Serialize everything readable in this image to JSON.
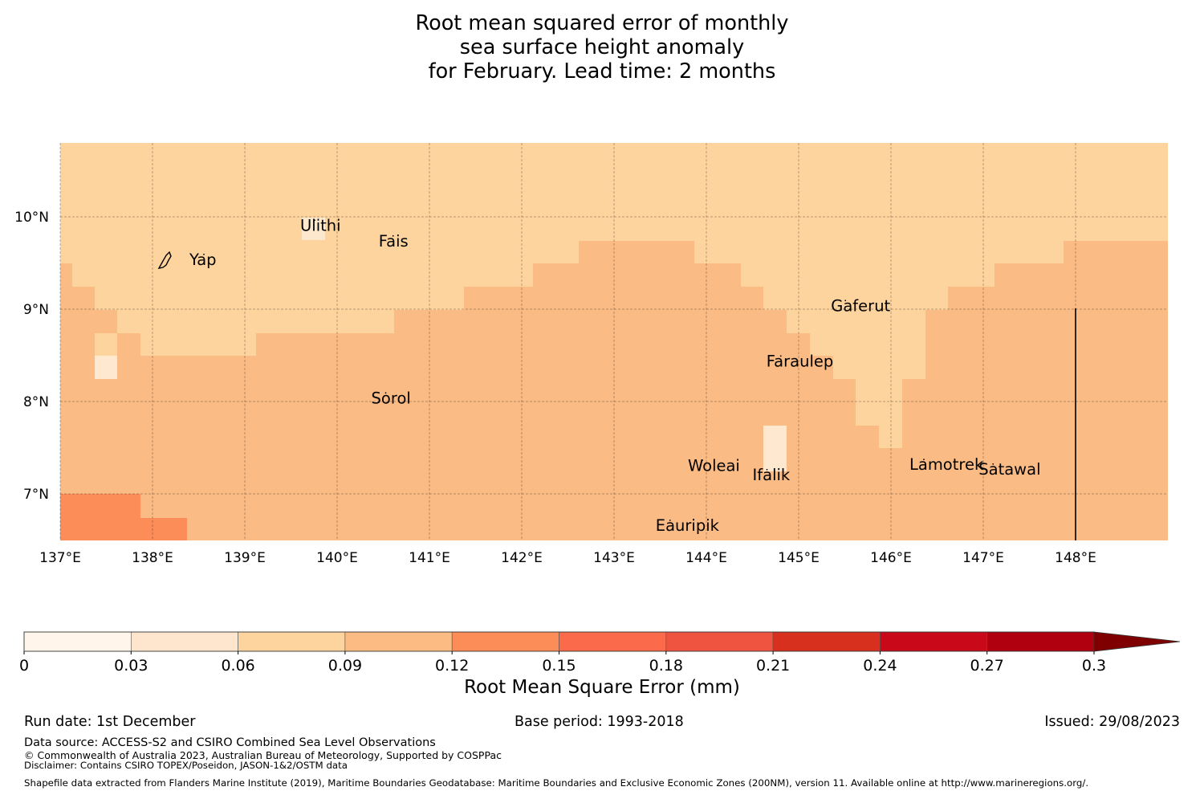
{
  "title": {
    "line1": "Root mean squared error of monthly",
    "line2": "sea surface height anomaly",
    "line3": "for February. Lead time: 2 months"
  },
  "map": {
    "lon_ticks": [
      "137°E",
      "138°E",
      "139°E",
      "140°E",
      "141°E",
      "142°E",
      "143°E",
      "144°E",
      "145°E",
      "146°E",
      "147°E",
      "148°E"
    ],
    "lat_ticks": [
      "10°N",
      "9°N",
      "8°N",
      "7°N"
    ],
    "places": [
      {
        "name": "Ulithi",
        "lon": 139.6,
        "lat": 9.85
      },
      {
        "name": "Fais",
        "lon": 140.45,
        "lat": 9.68
      },
      {
        "name": "Yap",
        "lon": 138.4,
        "lat": 9.48
      },
      {
        "name": "Gaferut",
        "lon": 145.35,
        "lat": 8.98
      },
      {
        "name": "Faraulep",
        "lon": 144.65,
        "lat": 8.38
      },
      {
        "name": "Sorol",
        "lon": 140.37,
        "lat": 7.98
      },
      {
        "name": "Woleai",
        "lon": 143.8,
        "lat": 7.25
      },
      {
        "name": "Ifalik",
        "lon": 144.5,
        "lat": 7.15
      },
      {
        "name": "Lamotrek",
        "lon": 146.2,
        "lat": 7.26
      },
      {
        "name": "Satawal",
        "lon": 146.95,
        "lat": 7.21
      },
      {
        "name": "Eauripik",
        "lon": 143.45,
        "lat": 6.6
      }
    ],
    "field_levels_note": "0=0-0.03,1=0.03-0.06,2=0.06-0.09,3=0.09-0.12,4=0.12-0.15"
  },
  "colorbar": {
    "ticks": [
      "0",
      "0.03",
      "0.06",
      "0.09",
      "0.12",
      "0.15",
      "0.18",
      "0.21",
      "0.24",
      "0.27",
      "0.3"
    ],
    "colors": [
      "#fff5eb",
      "#fee6ce",
      "#fdd49e",
      "#fdbb84",
      "#fc8d59",
      "#fb6a4a",
      "#ef5441",
      "#d7301f",
      "#c9091a",
      "#b00010",
      "#7f0000"
    ],
    "extend_color": "#7f0000",
    "label": "Root Mean Square Error (mm)"
  },
  "footer": {
    "run_date": "Run date: 1st December",
    "base_period": "Base period: 1993-2018",
    "issued": "Issued: 29/08/2023",
    "data_source": "Data source: ACCESS-S2 and CSIRO Combined Sea Level Observations",
    "copyright": "© Commonwealth of Australia 2023, Australian Bureau of Meteorology, Supported by COSPPac",
    "disclaimer": "Disclaimer: Contains CSIRO TOPEX/Poseidon, JASON-1&2/OSTM data",
    "shapefile": "Shapefile data extracted from Flanders Marine Institute (2019), Maritime Boundaries Geodatabase: Maritime Boundaries and Exclusive Economic Zones (200NM), version 11. Available online at http://www.marineregions.org/."
  }
}
